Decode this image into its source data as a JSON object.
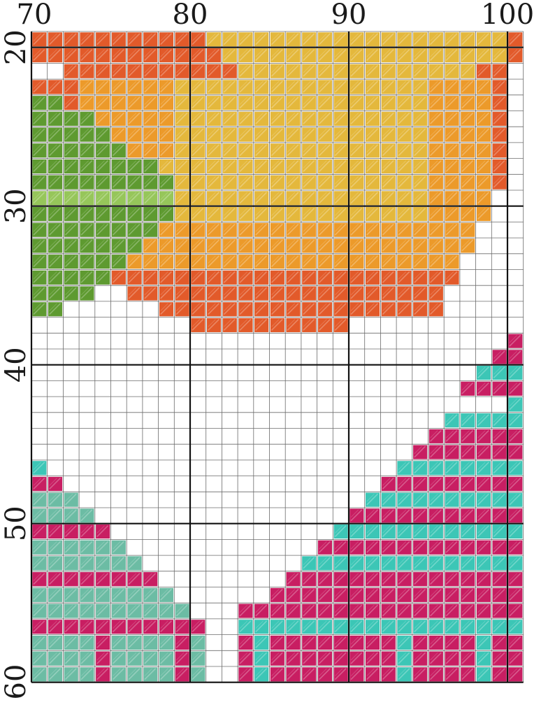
{
  "pattern": {
    "column_labels": [
      "70",
      "80",
      "90",
      "100"
    ],
    "row_labels": [
      "20",
      "30",
      "40",
      "50",
      "60"
    ],
    "column_label_values": [
      70,
      80,
      90,
      100
    ],
    "row_label_values": [
      20,
      30,
      40,
      50,
      60
    ],
    "first_column": 70,
    "first_row": 20,
    "columns": 31,
    "rows": 41,
    "palette": {
      "G": "#5e9a30",
      "L": "#96c65a",
      "R": "#e25a2a",
      "O": "#ec9a2a",
      "Y": "#e4b83c",
      "M": "#c81e62",
      "T": "#3cc6b6",
      "S": "#6cbca4"
    },
    "grid": [
      "RRRRRRRRRRRYYYYYYYYYYYYYYYYYYYR",
      "RRRRRRRRRRRRYYYYYYYYYYYYYYYYYYR",
      "..RRRRRRRRRRRYYYYYYYYYYYYYYYRR.",
      "RRROOOOOOYYYYYYYYYYYYYYYYOOOOR.",
      "GGROOOOOOYYYYYYYYYYYYYYYYOOOOR.",
      "GGGGOOOOOYYYYYYYYYYYYYYYYOOOOR.",
      "GGGGGOOOOYYYYYYYYYYYYYYYYOOOOR.",
      "GGGGGGOOOYYYYYYYYYYYYYYYYOOOOR.",
      "GGGGGGGGYYYYYYYYYYYYYYYYYOOOOR.",
      "GGGGGGGGGYYYYYYYYYYYYYYYYOOOOR.",
      "LLLLLLLLLYYYYYYYYYYYYYYYYOOOO..",
      "GGGGGGGGGYYYYYYYYYYYYYYYYOOOO..",
      "GGGGGGGGOOOOOOOOOOOOOOOOOOOO...",
      "GGGGGGGOOOOOOOOOOOOOOOOOOOOO...",
      "GGGGGGOOOOOOOOOOOOOOOOOOOOO....",
      "GGGGGRRRRRRRRRRRRRRRRRRRRRR....",
      "GGGG..RRRRRRRRRRRRRRRRRRRR.....",
      "GG......RRRRRRRRRRRRRRRRRR.....",
      "..........RRRRRRRRRR...........",
      "..............................M",
      ".............................MM",
      "............................TTT",
      "...........................MMMM",
      "..............................T",
      "..........................TTTTT",
      ".........................MMMMMM",
      "........................MMMMMMM",
      "T......................TTTTTTTT",
      "MM....................MMMMMMMMM",
      "SSS..................TTTTTTTTTT",
      "SSSS................MMMMMMMMMMM",
      "MMMMM..............TTTTTTTTTTTT",
      "SSSSSS............MMMMMMMMMMMMM",
      "SSSSSSS..........TTTTTTTTTTTTTT",
      "MMMMMMMM........MMMMMMMMMMMMMMM",
      "SSSSSSSSS......MMMMMMMMMMMMMMMM",
      "SSSSSSSSSS...MMMMMMMMMMMMMMMMMM",
      "MMMMMMMMMMM..TTTTTTTTTTTTTTTTTT",
      "SSSSMSSSSMS..MTMMMMMMMMTMMMMTMM",
      "SSSSMSSSSMS..MTMMMMMMMMTMMMMTMM",
      "SSSSMSSSSMS..MTMMMMMMMMTMMMMTMM"
    ]
  }
}
